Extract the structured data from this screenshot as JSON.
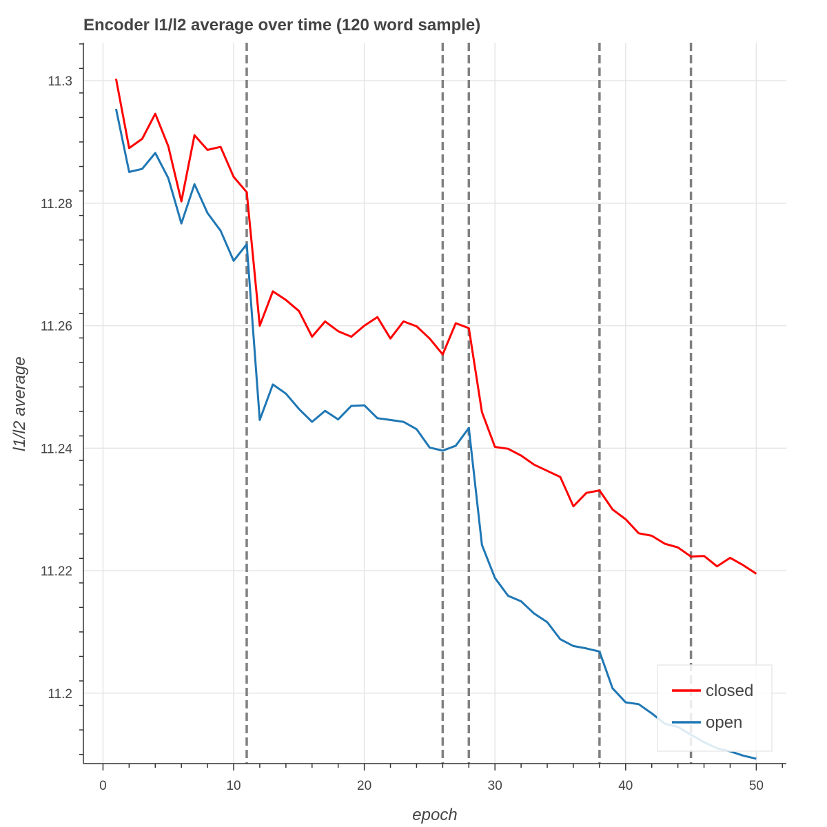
{
  "chart_data": {
    "type": "line",
    "title": "Encoder l1/l2 average over time (120 word sample)",
    "xlabel": "epoch",
    "ylabel": "l1/l2 average",
    "xlim": [
      -1.5,
      52.3
    ],
    "ylim": [
      11.1885,
      11.3062
    ],
    "x_ticks": [
      0,
      10,
      20,
      30,
      40,
      50
    ],
    "x_tick_labels": [
      "0",
      "10",
      "20",
      "30",
      "40",
      "50"
    ],
    "y_ticks": [
      11.2,
      11.22,
      11.24,
      11.26,
      11.28,
      11.3
    ],
    "y_tick_labels": [
      "11.2",
      "11.22",
      "11.24",
      "11.26",
      "11.28",
      "11.3"
    ],
    "grid": true,
    "legend_position": "bottom-right",
    "vertical_markers": [
      11,
      26,
      28,
      38,
      45
    ],
    "x": [
      1,
      2,
      3,
      4,
      5,
      6,
      7,
      8,
      9,
      10,
      11,
      12,
      13,
      14,
      15,
      16,
      17,
      18,
      19,
      20,
      21,
      22,
      23,
      24,
      25,
      26,
      27,
      28,
      29,
      30,
      31,
      32,
      33,
      34,
      35,
      36,
      37,
      38,
      39,
      40,
      41,
      42,
      43,
      44,
      45,
      46,
      47,
      48,
      49,
      50
    ],
    "series": [
      {
        "name": "closed",
        "color": "#ff0000",
        "values": [
          11.3003,
          11.289,
          11.2905,
          11.2946,
          11.2893,
          11.2803,
          11.2911,
          11.2887,
          11.2892,
          11.2843,
          11.2818,
          11.26,
          11.2656,
          11.2642,
          11.2624,
          11.2582,
          11.2607,
          11.2591,
          11.2582,
          11.26,
          11.2614,
          11.2579,
          11.2607,
          11.2599,
          11.2579,
          11.2553,
          11.2604,
          11.2596,
          11.2459,
          11.2402,
          11.2399,
          11.2388,
          11.2373,
          11.2363,
          11.2353,
          11.2305,
          11.2327,
          11.2331,
          11.23,
          11.2284,
          11.2261,
          11.2257,
          11.2244,
          11.2238,
          11.2223,
          11.2224,
          11.2207,
          11.2221,
          11.2209,
          11.2195
        ]
      },
      {
        "name": "open",
        "color": "#1f77b4",
        "values": [
          11.2954,
          11.2851,
          11.2856,
          11.2882,
          11.2841,
          11.2767,
          11.2831,
          11.2784,
          11.2755,
          11.2706,
          11.2733,
          11.2446,
          11.2504,
          11.2489,
          11.2464,
          11.2443,
          11.2461,
          11.2447,
          11.2469,
          11.247,
          11.2449,
          11.2446,
          11.2443,
          11.2431,
          11.2401,
          11.2396,
          11.2404,
          11.2433,
          11.2242,
          11.2188,
          11.2159,
          11.215,
          11.213,
          11.2116,
          11.2088,
          11.2077,
          11.2073,
          11.2068,
          11.2008,
          11.1985,
          11.1982,
          11.1967,
          11.195,
          11.1945,
          11.1932,
          11.192,
          11.191,
          11.1905,
          11.1898,
          11.1893
        ]
      }
    ]
  }
}
